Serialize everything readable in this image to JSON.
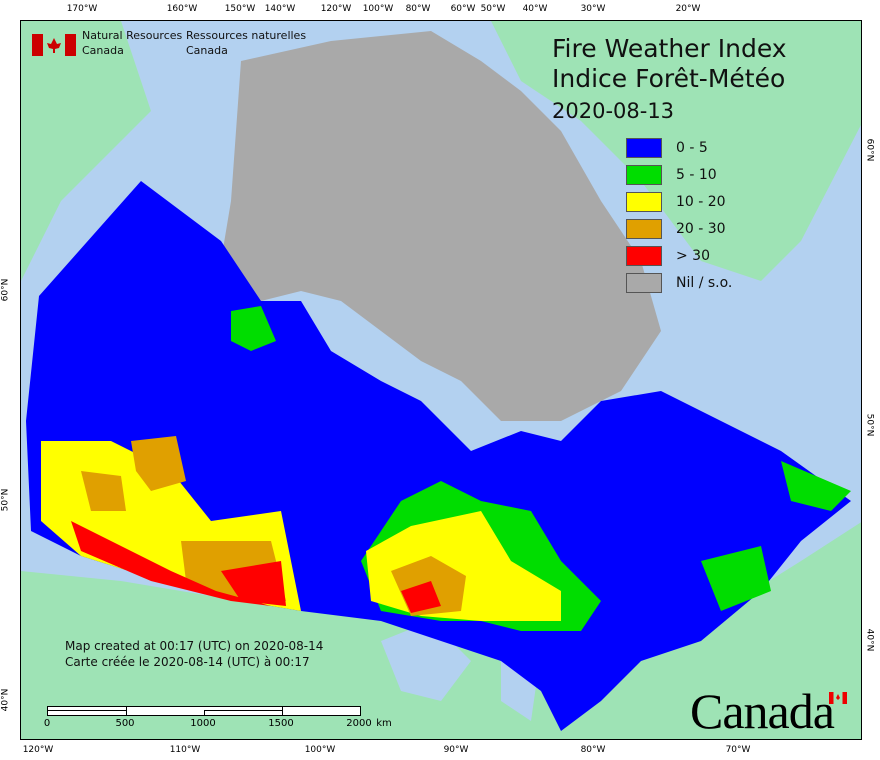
{
  "title_en": "Fire Weather Index",
  "title_fr": "Indice Forêt-Météo",
  "date": "2020-08-13",
  "agency": {
    "en1": "Natural Resources",
    "en2": "Canada",
    "fr1": "Ressources naturelles",
    "fr2": "Canada"
  },
  "legend": [
    {
      "label": "0 - 5",
      "color": "#0000ff"
    },
    {
      "label": "5 - 10",
      "color": "#00dd00"
    },
    {
      "label": "10 - 20",
      "color": "#ffff00"
    },
    {
      "label": "20 - 30",
      "color": "#e0a000"
    },
    {
      "label": "> 30",
      "color": "#ff0000"
    },
    {
      "label": "Nil / s.o.",
      "color": "#a9a9a9"
    }
  ],
  "note": {
    "en": "Map created at 00:17 (UTC) on 2020-08-14",
    "fr": "Carte créée le 2020-08-14 (UTC) à 00:17"
  },
  "scale": {
    "labels": [
      "0",
      "500",
      "1000",
      "1500",
      "2000"
    ],
    "unit": "km"
  },
  "wordmark": "Canada",
  "ticks": {
    "top": [
      "170°W",
      "160°W",
      "150°W",
      "140°W",
      "120°W",
      "100°W",
      "80°W",
      "60°W",
      "50°W",
      "40°W",
      "30°W",
      "20°W"
    ],
    "bottom": [
      "120°W",
      "110°W",
      "100°W",
      "90°W",
      "80°W",
      "70°W"
    ],
    "left": [
      "60°N",
      "50°N",
      "40°N"
    ],
    "right": [
      "60°N",
      "50°N",
      "40°N"
    ]
  },
  "colors": {
    "water": "#b3d1f0",
    "land": "#9ee3b5",
    "nil": "#a9a9a9"
  }
}
